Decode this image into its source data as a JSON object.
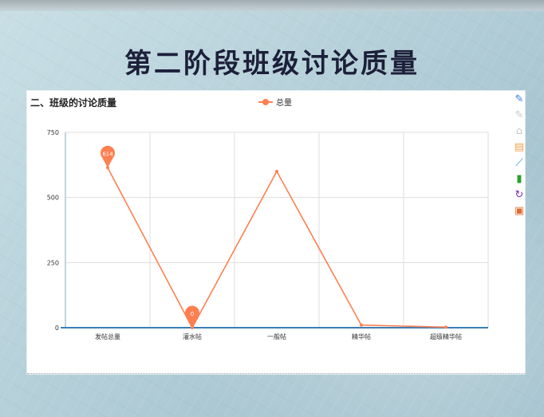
{
  "slide": {
    "title": "第二阶段班级讨论质量"
  },
  "chart_data": {
    "type": "line",
    "title": "二、班级的讨论质量",
    "categories": [
      "发帖总量",
      "灌水帖",
      "一般帖",
      "精华帖",
      "超级精华帖"
    ],
    "series": [
      {
        "name": "总量",
        "values": [
          614,
          0,
          600,
          10,
          2
        ],
        "color": "#ff7f50"
      }
    ],
    "ylim": [
      0,
      750
    ],
    "yticks": [
      0,
      250,
      500,
      750
    ],
    "grid": true,
    "legend_position": "top-center",
    "markers": [
      {
        "label": "614",
        "category_index": 0
      },
      {
        "label": "0",
        "category_index": 1
      }
    ]
  },
  "toolbox": {
    "items": [
      {
        "name": "mark-pen-icon",
        "glyph": "✎",
        "color": "#3b7bd6"
      },
      {
        "name": "mark-undo-icon",
        "glyph": "✎",
        "color": "#c8c8c8"
      },
      {
        "name": "mark-clear-icon",
        "glyph": "⌂",
        "color": "#c8c8c8"
      },
      {
        "name": "data-view-icon",
        "glyph": "▤",
        "color": "#f0a04b"
      },
      {
        "name": "line-chart-icon",
        "glyph": "⟋",
        "color": "#2aa0d8"
      },
      {
        "name": "bar-chart-icon",
        "glyph": "▮",
        "color": "#2aa02a"
      },
      {
        "name": "restore-icon",
        "glyph": "↻",
        "color": "#7a2fbf"
      },
      {
        "name": "save-image-icon",
        "glyph": "▣",
        "color": "#e06b2d"
      }
    ]
  }
}
